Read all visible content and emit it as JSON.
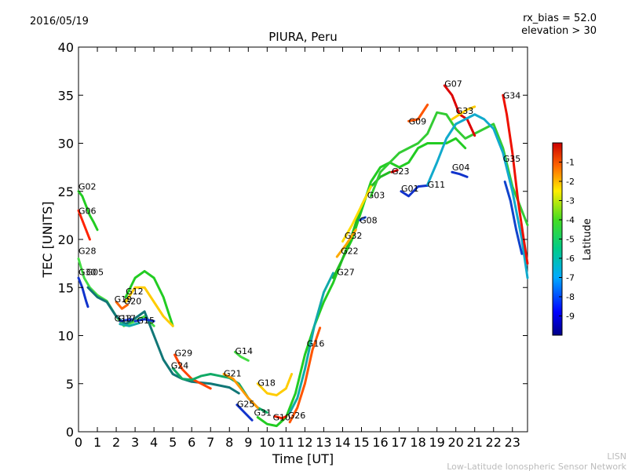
{
  "header": {
    "date": "2016/05/19",
    "bias": "rx_bias = 52.0",
    "elevation": "elevation > 30"
  },
  "footer": {
    "credit_short": "LISN",
    "credit_long": "Low-Latitude Ionospheric Sensor Network"
  },
  "chart_data": {
    "type": "scatter",
    "title": "PIURA, Peru",
    "xlabel": "Time [UT]",
    "ylabel": "TEC [UNITS]",
    "xlim": [
      0,
      23.8
    ],
    "ylim": [
      0,
      40
    ],
    "xticks": [
      0,
      1,
      2,
      3,
      4,
      5,
      6,
      7,
      8,
      9,
      10,
      11,
      12,
      13,
      14,
      15,
      16,
      17,
      18,
      19,
      20,
      21,
      22,
      23
    ],
    "yticks": [
      0,
      5,
      10,
      15,
      20,
      25,
      30,
      35,
      40
    ],
    "colorbar": {
      "label": "Latitude",
      "range": [
        -10,
        0
      ],
      "ticks": [
        -1,
        -2,
        -3,
        -4,
        -5,
        -6,
        -7,
        -8,
        -9
      ]
    },
    "series": [
      {
        "name": "G02",
        "label_pos": [
          0.0,
          25.5
        ],
        "color": "#22cc22",
        "points": [
          [
            0,
            25
          ],
          [
            0.2,
            24.5
          ],
          [
            0.4,
            23.5
          ],
          [
            0.6,
            22.5
          ],
          [
            0.8,
            21.8
          ],
          [
            1.0,
            21
          ]
        ]
      },
      {
        "name": "G06",
        "label_pos": [
          0.0,
          23.0
        ],
        "color": "#ff2200",
        "points": [
          [
            0,
            23
          ],
          [
            0.2,
            22
          ],
          [
            0.4,
            21
          ],
          [
            0.6,
            20
          ]
        ]
      },
      {
        "name": "G28",
        "label_pos": [
          0.0,
          18.8
        ],
        "color": "#44dd44",
        "points": [
          [
            0,
            18
          ],
          [
            0.3,
            16
          ],
          [
            0.6,
            15
          ],
          [
            1.0,
            14.2
          ],
          [
            1.5,
            13.6
          ],
          [
            2.0,
            12
          ],
          [
            2.4,
            11
          ],
          [
            3.0,
            11.5
          ],
          [
            3.5,
            12
          ],
          [
            4.0,
            11
          ]
        ]
      },
      {
        "name": "G30",
        "label_pos": [
          0.0,
          16.6
        ],
        "color": "#1133cc",
        "points": [
          [
            0,
            16
          ],
          [
            0.2,
            15
          ],
          [
            0.4,
            13.6
          ],
          [
            0.5,
            13
          ]
        ]
      },
      {
        "name": "G05",
        "label_pos": [
          0.4,
          16.6
        ],
        "color": "#117777",
        "points": [
          [
            0.5,
            15
          ],
          [
            1.0,
            14
          ],
          [
            1.5,
            13.5
          ],
          [
            2.0,
            12
          ],
          [
            2.5,
            11.2
          ],
          [
            3.0,
            11.8
          ],
          [
            3.5,
            12.5
          ],
          [
            4.0,
            10
          ],
          [
            4.5,
            7.5
          ],
          [
            5.0,
            6
          ],
          [
            5.5,
            5.5
          ],
          [
            6.0,
            5.2
          ],
          [
            7.0,
            5
          ],
          [
            8.0,
            4.6
          ],
          [
            8.5,
            4
          ]
        ]
      },
      {
        "name": "G12",
        "label_pos": [
          2.5,
          14.6
        ],
        "color": "#22cc22",
        "points": [
          [
            2.5,
            14
          ],
          [
            3.0,
            16
          ],
          [
            3.5,
            16.7
          ],
          [
            4.0,
            16
          ],
          [
            4.5,
            14
          ],
          [
            5.0,
            11
          ]
        ]
      },
      {
        "name": "G19",
        "label_pos": [
          1.9,
          13.8
        ],
        "color": "#ff6600",
        "points": [
          [
            2.0,
            13.5
          ],
          [
            2.3,
            12.8
          ],
          [
            2.6,
            13.2
          ]
        ]
      },
      {
        "name": "G20",
        "label_pos": [
          2.4,
          13.6
        ],
        "color": "#ffcc00",
        "points": [
          [
            2.5,
            13.5
          ],
          [
            3.0,
            15
          ],
          [
            3.5,
            15
          ],
          [
            4.0,
            13.5
          ],
          [
            4.5,
            12
          ],
          [
            5.0,
            11
          ]
        ]
      },
      {
        "name": "G13",
        "label_pos": [
          1.9,
          11.8
        ],
        "color": "#2244dd",
        "points": [
          [
            2.2,
            11.5
          ],
          [
            2.5,
            11.6
          ],
          [
            2.8,
            11.7
          ]
        ]
      },
      {
        "name": "G17",
        "label_pos": [
          2.1,
          11.8
        ],
        "color": "#11aaaa",
        "points": [
          [
            2.2,
            11.2
          ],
          [
            2.7,
            11
          ],
          [
            3.2,
            11.3
          ]
        ]
      },
      {
        "name": "G15",
        "label_pos": [
          3.1,
          11.6
        ],
        "color": "#1133cc",
        "points": [
          [
            3.0,
            11.5
          ],
          [
            3.5,
            11.7
          ],
          [
            4.0,
            11.5
          ]
        ]
      },
      {
        "name": "G29",
        "label_pos": [
          5.1,
          8.2
        ],
        "color": "#ff4400",
        "points": [
          [
            5.1,
            8
          ],
          [
            5.5,
            6.5
          ],
          [
            6.0,
            5.5
          ],
          [
            7.0,
            4.5
          ]
        ]
      },
      {
        "name": "G24",
        "label_pos": [
          4.9,
          6.9
        ],
        "color": "#11aa66",
        "points": [
          [
            5.0,
            6.6
          ],
          [
            5.5,
            5.5
          ],
          [
            6.0,
            5.4
          ],
          [
            6.5,
            5.8
          ],
          [
            7.0,
            6
          ],
          [
            7.5,
            5.8
          ],
          [
            8.0,
            5.6
          ],
          [
            8.5,
            5
          ],
          [
            9.0,
            3.5
          ],
          [
            9.5,
            2.5
          ],
          [
            10.0,
            2
          ]
        ]
      },
      {
        "name": "G14",
        "label_pos": [
          8.3,
          8.4
        ],
        "color": "#44dd44",
        "points": [
          [
            8.3,
            8.3
          ],
          [
            8.6,
            7.8
          ],
          [
            9.0,
            7.4
          ]
        ]
      },
      {
        "name": "G21",
        "label_pos": [
          7.7,
          6.1
        ],
        "color": "#ff9900",
        "points": [
          [
            7.7,
            6
          ],
          [
            8.2,
            5.5
          ],
          [
            8.6,
            4.5
          ],
          [
            9.0,
            3.5
          ],
          [
            9.5,
            2.5
          ]
        ]
      },
      {
        "name": "G18",
        "label_pos": [
          9.5,
          5.1
        ],
        "color": "#ffcc00",
        "points": [
          [
            9.5,
            5
          ],
          [
            10.0,
            4
          ],
          [
            10.5,
            3.8
          ],
          [
            11.0,
            4.5
          ],
          [
            11.3,
            6
          ]
        ]
      },
      {
        "name": "G25",
        "label_pos": [
          8.4,
          2.9
        ],
        "color": "#1133cc",
        "points": [
          [
            8.4,
            2.8
          ],
          [
            8.8,
            2
          ],
          [
            9.2,
            1.2
          ]
        ]
      },
      {
        "name": "G31",
        "label_pos": [
          9.3,
          2.0
        ],
        "color": "#22cc22",
        "points": [
          [
            9.5,
            1.5
          ],
          [
            10.0,
            0.8
          ],
          [
            10.5,
            0.6
          ],
          [
            11.0,
            1.5
          ],
          [
            11.5,
            4
          ],
          [
            12.0,
            8
          ],
          [
            12.5,
            11
          ],
          [
            13.0,
            13.5
          ],
          [
            13.5,
            15.5
          ],
          [
            14.0,
            18
          ],
          [
            14.5,
            20
          ],
          [
            15.0,
            23
          ],
          [
            15.5,
            26
          ],
          [
            16.0,
            27.5
          ],
          [
            16.5,
            28
          ],
          [
            17.0,
            27.5
          ],
          [
            17.5,
            28
          ],
          [
            18.0,
            29.5
          ],
          [
            18.5,
            30
          ],
          [
            19.0,
            30
          ],
          [
            19.5,
            30
          ],
          [
            20.0,
            30.5
          ],
          [
            20.5,
            29.5
          ]
        ]
      },
      {
        "name": "G10",
        "label_pos": [
          10.3,
          1.5
        ],
        "color": "#ff2200",
        "points": [
          [
            10.4,
            1.6
          ],
          [
            10.8,
            1.4
          ],
          [
            11.0,
            1.6
          ]
        ]
      },
      {
        "name": "G26",
        "label_pos": [
          11.1,
          1.7
        ],
        "color": "#11aaaa",
        "points": [
          [
            11.2,
            2
          ],
          [
            11.6,
            3.5
          ],
          [
            12.0,
            6.5
          ],
          [
            12.5,
            11
          ],
          [
            13.0,
            14.5
          ],
          [
            13.5,
            16.5
          ]
        ]
      },
      {
        "name": "G16",
        "label_pos": [
          12.1,
          9.2
        ],
        "color": "#ff5500",
        "points": [
          [
            11.2,
            1
          ],
          [
            11.6,
            2.5
          ],
          [
            12.0,
            5
          ],
          [
            12.4,
            8.5
          ],
          [
            12.8,
            10.8
          ]
        ]
      },
      {
        "name": "G27",
        "label_pos": [
          13.7,
          16.6
        ],
        "color": "#22bb22",
        "points": [
          [
            13.5,
            16
          ],
          [
            14.0,
            18
          ],
          [
            14.5,
            20.5
          ],
          [
            15.0,
            23.5
          ],
          [
            15.5,
            25.5
          ],
          [
            16.0,
            26.5
          ],
          [
            16.5,
            27
          ]
        ]
      },
      {
        "name": "G22",
        "label_pos": [
          13.9,
          18.8
        ],
        "color": "#ffaa00",
        "points": [
          [
            13.7,
            18.2
          ],
          [
            14.2,
            19.5
          ],
          [
            14.7,
            21
          ]
        ]
      },
      {
        "name": "G32",
        "label_pos": [
          14.1,
          20.4
        ],
        "color": "#ffdd00",
        "points": [
          [
            14.0,
            19.8
          ],
          [
            14.5,
            21.5
          ],
          [
            15.0,
            23.5
          ],
          [
            15.5,
            25.5
          ]
        ]
      },
      {
        "name": "G08",
        "label_pos": [
          14.9,
          22.0
        ],
        "color": "#2255dd",
        "points": [
          [
            14.9,
            22
          ],
          [
            15.2,
            22.3
          ]
        ]
      },
      {
        "name": "G03",
        "label_pos": [
          15.3,
          24.6
        ],
        "color": "#33cc33",
        "points": [
          [
            15.5,
            24.5
          ],
          [
            16.0,
            27
          ],
          [
            16.5,
            28
          ],
          [
            17.0,
            29
          ],
          [
            17.5,
            29.5
          ],
          [
            18.0,
            30
          ],
          [
            18.5,
            31
          ],
          [
            19.0,
            33.2
          ],
          [
            19.5,
            33
          ],
          [
            20.0,
            31.5
          ],
          [
            20.5,
            30.5
          ],
          [
            21.0,
            31
          ],
          [
            21.5,
            31.5
          ],
          [
            22.0,
            32
          ],
          [
            22.5,
            29.5
          ],
          [
            23.0,
            25.5
          ],
          [
            23.5,
            23
          ],
          [
            23.8,
            21.5
          ]
        ]
      },
      {
        "name": "G23",
        "label_pos": [
          16.6,
          27.1
        ],
        "color": "#cc0000",
        "points": [
          [
            16.6,
            27
          ],
          [
            16.9,
            27.2
          ]
        ]
      },
      {
        "name": "G09",
        "label_pos": [
          17.5,
          32.3
        ],
        "color": "#ff5500",
        "points": [
          [
            17.5,
            32.3
          ],
          [
            18.0,
            32.5
          ],
          [
            18.5,
            34
          ]
        ]
      },
      {
        "name": "G01",
        "label_pos": [
          17.1,
          25.3
        ],
        "color": "#1133cc",
        "points": [
          [
            17.1,
            25
          ],
          [
            17.5,
            24.5
          ],
          [
            18.0,
            25.5
          ],
          [
            18.5,
            25.6
          ]
        ]
      },
      {
        "name": "G07",
        "label_pos": [
          19.4,
          36.2
        ],
        "color": "#dd0000",
        "points": [
          [
            19.4,
            36
          ],
          [
            19.8,
            35
          ],
          [
            20.2,
            33
          ],
          [
            20.6,
            32.5
          ],
          [
            21.0,
            30.8
          ]
        ]
      },
      {
        "name": "G11",
        "label_pos": [
          18.5,
          25.7
        ],
        "color": "#11aacc",
        "points": [
          [
            18.5,
            25.7
          ],
          [
            19.0,
            28
          ],
          [
            19.5,
            30.5
          ],
          [
            20.0,
            32
          ],
          [
            20.5,
            32.5
          ],
          [
            21.0,
            33
          ],
          [
            21.5,
            32.5
          ],
          [
            22.0,
            31.5
          ],
          [
            22.5,
            29
          ],
          [
            23.0,
            25
          ],
          [
            23.5,
            20
          ],
          [
            23.8,
            16
          ]
        ]
      },
      {
        "name": "G04",
        "label_pos": [
          19.8,
          27.5
        ],
        "color": "#1133cc",
        "points": [
          [
            19.8,
            27
          ],
          [
            20.2,
            26.8
          ],
          [
            20.6,
            26.5
          ]
        ]
      },
      {
        "name": "G33",
        "label_pos": [
          20.0,
          33.4
        ],
        "color": "#ffcc00",
        "points": [
          [
            19.8,
            32.5
          ],
          [
            20.2,
            33
          ],
          [
            20.6,
            33.5
          ],
          [
            21.0,
            33.8
          ]
        ]
      },
      {
        "name": "G34",
        "label_pos": [
          22.5,
          35.0
        ],
        "color": "#ee1100",
        "points": [
          [
            22.5,
            35
          ],
          [
            22.7,
            33
          ],
          [
            23.0,
            29
          ],
          [
            23.3,
            24
          ],
          [
            23.6,
            20
          ],
          [
            23.8,
            17.5
          ]
        ]
      },
      {
        "name": "G35",
        "label_pos": [
          22.5,
          28.4
        ],
        "color": "#1144cc",
        "points": [
          [
            22.6,
            26
          ],
          [
            22.9,
            24
          ],
          [
            23.2,
            21
          ],
          [
            23.5,
            18.5
          ]
        ]
      }
    ]
  }
}
